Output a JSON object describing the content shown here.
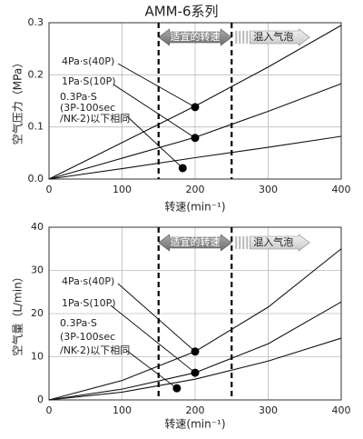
{
  "chart_data": [
    {
      "type": "line",
      "title": "AMM-6系列",
      "x_label": "转速(min⁻¹)",
      "y_label": "空气压力（MPa）",
      "x": [
        0,
        100,
        200,
        300,
        400
      ],
      "xlim": [
        0,
        400
      ],
      "xticks": [
        0,
        100,
        200,
        300,
        400
      ],
      "ylim": [
        0,
        0.3
      ],
      "yticks": [
        {
          "value": 0,
          "label": "0.0"
        },
        0.1,
        0.2,
        0.3
      ],
      "grid": true,
      "color": "#111",
      "regions": [
        {
          "label": "适宜的转速",
          "from": 150,
          "to": 250
        },
        {
          "label": "混入气泡",
          "from": 250
        }
      ],
      "series": [
        {
          "label": [
            "4Pa·s(40P)"
          ],
          "values": [
            0,
            0.07,
            0.14,
            0.215,
            0.295
          ],
          "marker": {
            "x": 200,
            "y": 0.138
          }
        },
        {
          "label": [
            "1Pa·S(10P)"
          ],
          "values": [
            0,
            0.04,
            0.08,
            0.13,
            0.183
          ],
          "marker": {
            "x": 200,
            "y": 0.079
          }
        },
        {
          "label": [
            "0.3Pa·S",
            "(3P-100sec",
            "/NK-2)以下相同"
          ],
          "values": [
            0,
            0.02,
            0.041,
            0.061,
            0.082
          ],
          "marker": {
            "x": 183,
            "y": 0.021
          }
        }
      ]
    },
    {
      "type": "line",
      "x_label": "转速(min⁻¹)",
      "y_label": "空气量（L/min）",
      "x": [
        0,
        100,
        200,
        300,
        400
      ],
      "xlim": [
        0,
        400
      ],
      "xticks": [
        0,
        100,
        200,
        300,
        400
      ],
      "ylim": [
        0,
        40
      ],
      "yticks": [
        0,
        10,
        20,
        30,
        40
      ],
      "grid": true,
      "color": "#111",
      "regions": [
        {
          "label": "适宜的转速",
          "from": 150,
          "to": 250
        },
        {
          "label": "混入气泡",
          "from": 250
        }
      ],
      "series": [
        {
          "label": [
            "4Pa·s(40P)"
          ],
          "values": [
            0,
            4.5,
            11.2,
            21.5,
            35
          ],
          "marker": {
            "x": 200,
            "y": 11.2
          }
        },
        {
          "label": [
            "1Pa·S(10P)"
          ],
          "values": [
            0,
            2.5,
            6.3,
            13,
            22.7
          ],
          "marker": {
            "x": 200,
            "y": 6.3
          }
        },
        {
          "label": [
            "0.3Pa·S",
            "(3P-100sec",
            "/NK-2)以下相同"
          ],
          "values": [
            0,
            1.8,
            4.8,
            9,
            14.3
          ],
          "marker": {
            "x": 175,
            "y": 2.7
          }
        }
      ]
    }
  ]
}
